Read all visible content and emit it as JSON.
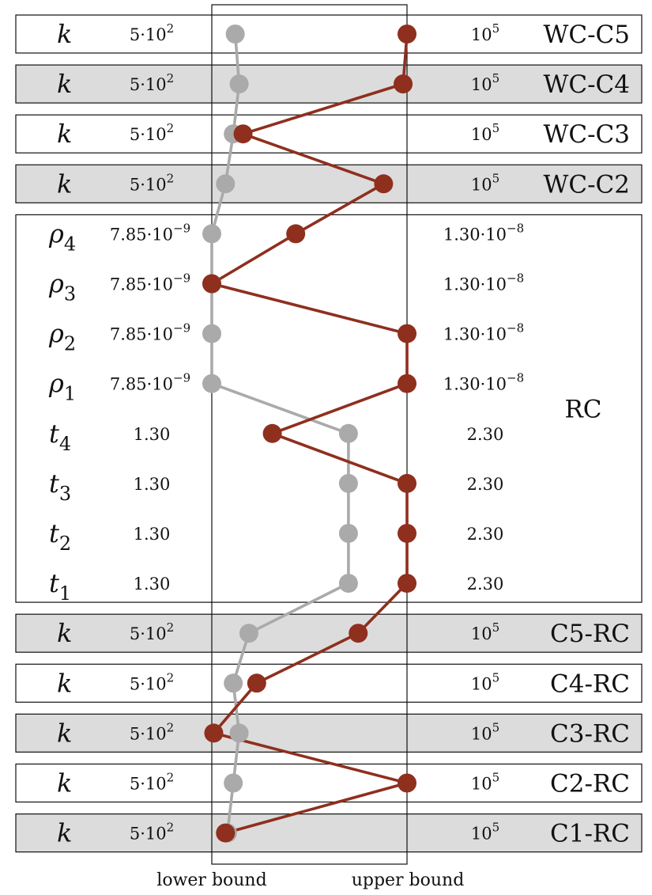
{
  "chart_data": {
    "type": "parallel_coordinates",
    "parameters": [
      {
        "symbol": "k",
        "sub": "",
        "group": "WC-C5",
        "lower": "5·10",
        "lower_exp": "2",
        "upper": "10",
        "upper_exp": "5",
        "grey": 0.12,
        "red": 1.0
      },
      {
        "symbol": "k",
        "sub": "",
        "group": "WC-C4",
        "lower": "5·10",
        "lower_exp": "2",
        "upper": "10",
        "upper_exp": "5",
        "grey": 0.14,
        "red": 0.98
      },
      {
        "symbol": "k",
        "sub": "",
        "group": "WC-C3",
        "lower": "5·10",
        "lower_exp": "2",
        "upper": "10",
        "upper_exp": "5",
        "grey": 0.11,
        "red": 0.16
      },
      {
        "symbol": "k",
        "sub": "",
        "group": "WC-C2",
        "lower": "5·10",
        "lower_exp": "2",
        "upper": "10",
        "upper_exp": "5",
        "grey": 0.07,
        "red": 0.88
      },
      {
        "symbol": "ρ",
        "sub": "4",
        "group": "RC",
        "lower": "7.85·10",
        "lower_exp": "−9",
        "upper": "1.30·10",
        "upper_exp": "−8",
        "grey": 0.0,
        "red": 0.43
      },
      {
        "symbol": "ρ",
        "sub": "3",
        "group": "RC",
        "lower": "7.85·10",
        "lower_exp": "−9",
        "upper": "1.30·10",
        "upper_exp": "−8",
        "grey": 0.0,
        "red": 0.0
      },
      {
        "symbol": "ρ",
        "sub": "2",
        "group": "RC",
        "lower": "7.85·10",
        "lower_exp": "−9",
        "upper": "1.30·10",
        "upper_exp": "−8",
        "grey": 0.0,
        "red": 1.0
      },
      {
        "symbol": "ρ",
        "sub": "1",
        "group": "RC",
        "lower": "7.85·10",
        "lower_exp": "−9",
        "upper": "1.30·10",
        "upper_exp": "−8",
        "grey": 0.0,
        "red": 1.0
      },
      {
        "symbol": "t",
        "sub": "4",
        "group": "RC",
        "lower": "1.30",
        "lower_exp": "",
        "upper": "2.30",
        "upper_exp": "",
        "grey": 0.7,
        "red": 0.31
      },
      {
        "symbol": "t",
        "sub": "3",
        "group": "RC",
        "lower": "1.30",
        "lower_exp": "",
        "upper": "2.30",
        "upper_exp": "",
        "grey": 0.7,
        "red": 1.0
      },
      {
        "symbol": "t",
        "sub": "2",
        "group": "RC",
        "lower": "1.30",
        "lower_exp": "",
        "upper": "2.30",
        "upper_exp": "",
        "grey": 0.7,
        "red": 1.0
      },
      {
        "symbol": "t",
        "sub": "1",
        "group": "RC",
        "lower": "1.30",
        "lower_exp": "",
        "upper": "2.30",
        "upper_exp": "",
        "grey": 0.7,
        "red": 1.0
      },
      {
        "symbol": "k",
        "sub": "",
        "group": "C5-RC",
        "lower": "5·10",
        "lower_exp": "2",
        "upper": "10",
        "upper_exp": "5",
        "grey": 0.19,
        "red": 0.75
      },
      {
        "symbol": "k",
        "sub": "",
        "group": "C4-RC",
        "lower": "5·10",
        "lower_exp": "2",
        "upper": "10",
        "upper_exp": "5",
        "grey": 0.11,
        "red": 0.23
      },
      {
        "symbol": "k",
        "sub": "",
        "group": "C3-RC",
        "lower": "5·10",
        "lower_exp": "2",
        "upper": "10",
        "upper_exp": "5",
        "grey": 0.14,
        "red": 0.01
      },
      {
        "symbol": "k",
        "sub": "",
        "group": "C2-RC",
        "lower": "5·10",
        "lower_exp": "2",
        "upper": "10",
        "upper_exp": "5",
        "grey": 0.11,
        "red": 1.0
      },
      {
        "symbol": "k",
        "sub": "",
        "group": "C1-RC",
        "lower": "5·10",
        "lower_exp": "2",
        "upper": "10",
        "upper_exp": "5",
        "grey": 0.08,
        "red": 0.07
      }
    ],
    "groups": [
      {
        "label": "WC-C5",
        "shaded": false
      },
      {
        "label": "WC-C4",
        "shaded": true
      },
      {
        "label": "WC-C3",
        "shaded": false
      },
      {
        "label": "WC-C2",
        "shaded": true
      },
      {
        "label": "RC",
        "shaded": false
      },
      {
        "label": "C5-RC",
        "shaded": true
      },
      {
        "label": "C4-RC",
        "shaded": false
      },
      {
        "label": "C3-RC",
        "shaded": true
      },
      {
        "label": "C2-RC",
        "shaded": false
      },
      {
        "label": "C1-RC",
        "shaded": true
      }
    ],
    "bound_labels": {
      "lower": "lower bound",
      "upper": "upper bound"
    },
    "colors": {
      "grey": "#aaaaaa",
      "red": "#8f2f1e",
      "shade": "#dcdcdc"
    }
  }
}
